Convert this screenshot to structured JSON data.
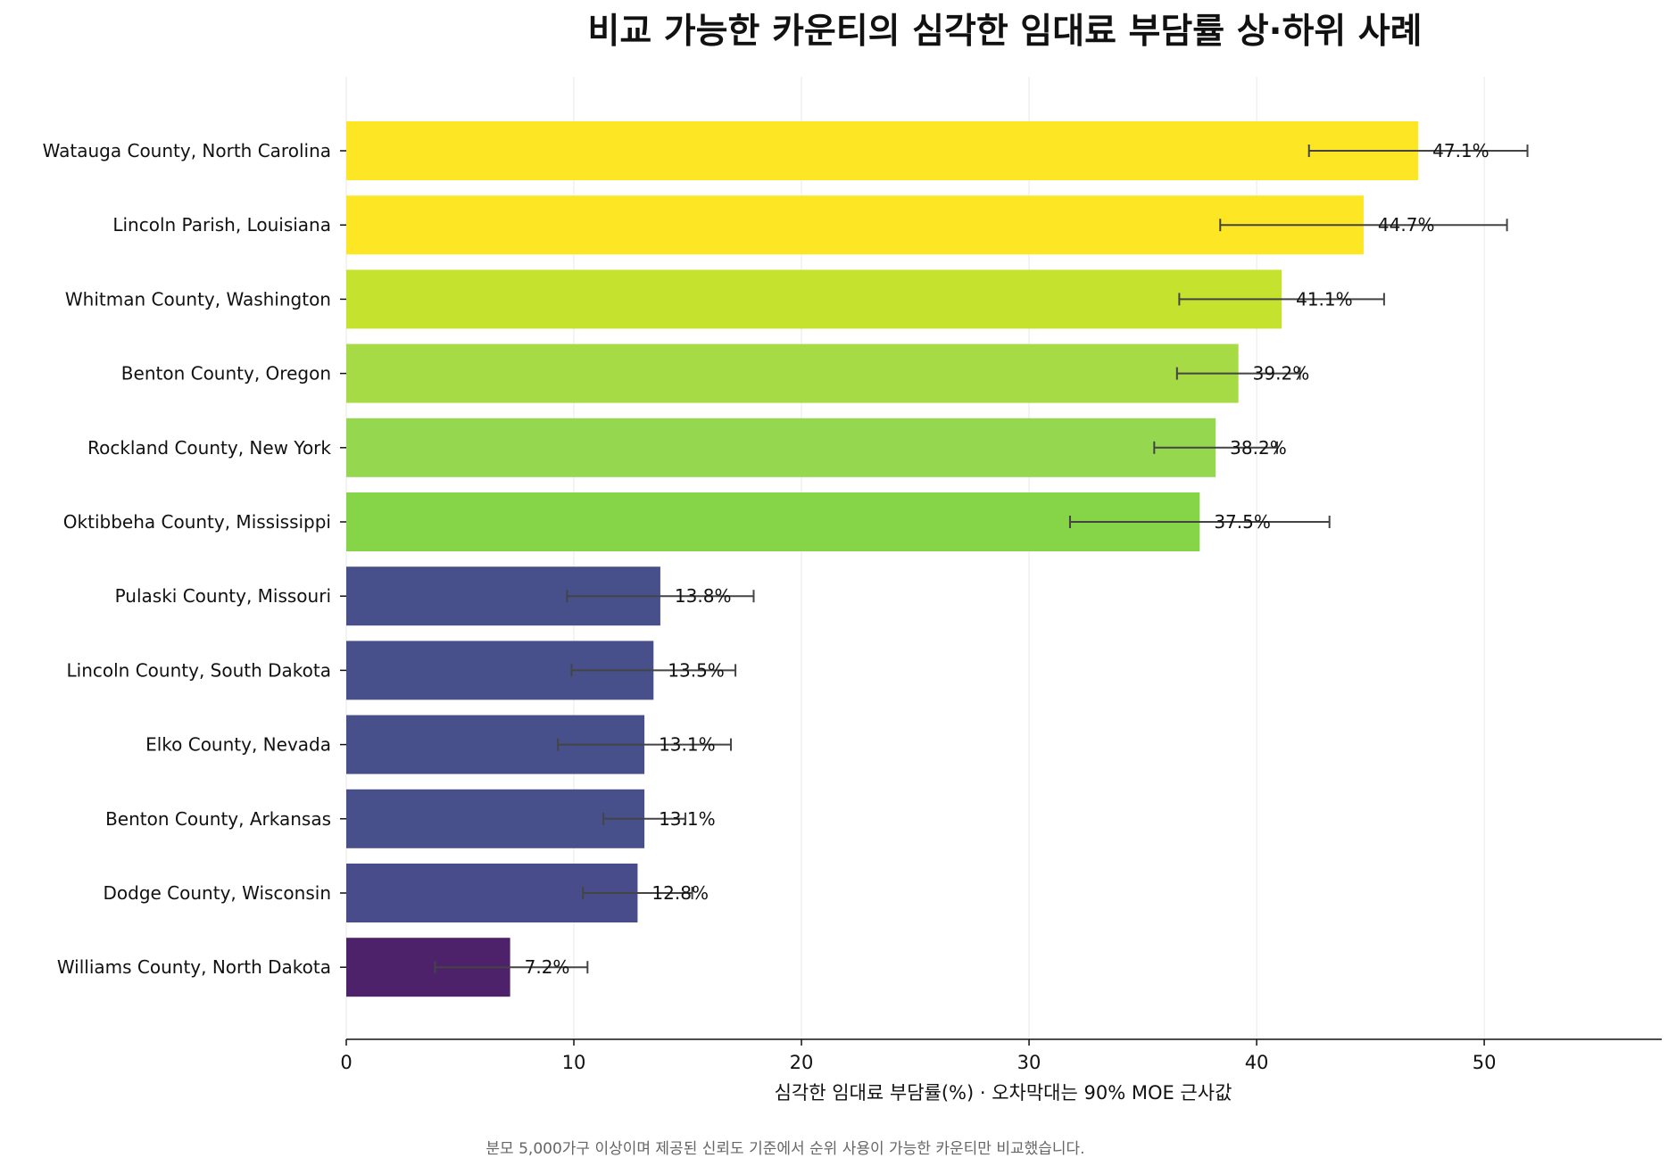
{
  "chart_data": {
    "type": "bar",
    "orientation": "horizontal",
    "title": "비교 가능한 카운티의 심각한 임대료 부담률 상·하위 사례",
    "xlabel": "심각한 임대료 부담률(%) · 오차막대는 90% MOE 근사값",
    "footnote": "분모 5,000가구 이상이며 제공된 신뢰도 기준에서 순위 사용이 가능한 카운티만 비교했습니다.",
    "xlim": [
      0,
      57.8
    ],
    "xticks": [
      0,
      10,
      20,
      30,
      40,
      50
    ],
    "xtick_labels": [
      "0",
      "10",
      "20",
      "30",
      "40",
      "50"
    ],
    "grid": "vertical",
    "categories": [
      "Watauga County, North Carolina",
      "Lincoln Parish, Louisiana",
      "Whitman County, Washington",
      "Benton County, Oregon",
      "Rockland County, New York",
      "Oktibbeha County, Mississippi",
      "Pulaski County, Missouri",
      "Lincoln County, South Dakota",
      "Elko County, Nevada",
      "Benton County, Arkansas",
      "Dodge County, Wisconsin",
      "Williams County, North Dakota"
    ],
    "values": [
      47.1,
      44.7,
      41.1,
      39.2,
      38.2,
      37.5,
      13.8,
      13.5,
      13.1,
      13.1,
      12.8,
      7.2
    ],
    "value_labels": [
      "47.1%",
      "44.7%",
      "41.1%",
      "39.2%",
      "38.2%",
      "37.5%",
      "13.8%",
      "13.5%",
      "13.1%",
      "13.1%",
      "12.8%",
      "7.2%"
    ],
    "error_low": [
      42.3,
      38.4,
      36.6,
      36.5,
      35.5,
      31.8,
      9.7,
      9.9,
      9.3,
      11.3,
      10.4,
      3.9
    ],
    "error_high": [
      51.9,
      51.0,
      45.6,
      41.9,
      40.9,
      43.2,
      17.9,
      17.1,
      16.9,
      14.9,
      15.2,
      10.6
    ],
    "colors": [
      "#fde725",
      "#fde725",
      "#c5e22f",
      "#a6db45",
      "#95d84f",
      "#86d549",
      "#48508b",
      "#48508b",
      "#48508b",
      "#48508b",
      "#494c8a",
      "#4e216b"
    ]
  }
}
